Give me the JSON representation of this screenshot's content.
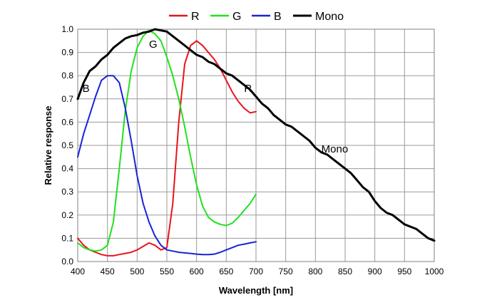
{
  "chart_data": {
    "type": "line",
    "title": "",
    "xlabel": "Wavelength [nm]",
    "ylabel": "Relative response",
    "xlim": [
      400,
      1000
    ],
    "ylim": [
      0.0,
      1.0
    ],
    "xticks": [
      400,
      450,
      500,
      550,
      600,
      650,
      700,
      750,
      800,
      850,
      900,
      950,
      1000
    ],
    "xtick_labels": [
      "400",
      "450",
      "500",
      "550",
      "600",
      "650",
      "700",
      "750",
      "800",
      "850",
      "900",
      "950",
      "1000"
    ],
    "yticks": [
      0.0,
      0.1,
      0.2,
      0.3,
      0.4,
      0.5,
      0.6,
      0.7,
      0.8,
      0.9,
      1.0
    ],
    "ytick_labels": [
      "0.0",
      "0.1",
      "0.2",
      "0.3",
      "0.4",
      "0.5",
      "0.6",
      "0.7",
      "0.8",
      "0.9",
      "1.0"
    ],
    "grid": true,
    "legend_position": "top",
    "series": [
      {
        "name": "R",
        "color": "#e8141c",
        "x": [
          400,
          410,
          420,
          430,
          440,
          450,
          460,
          470,
          480,
          490,
          500,
          510,
          520,
          530,
          540,
          550,
          560,
          570,
          580,
          590,
          600,
          610,
          620,
          630,
          640,
          650,
          660,
          670,
          680,
          690,
          700
        ],
        "y": [
          0.1,
          0.07,
          0.05,
          0.04,
          0.03,
          0.025,
          0.025,
          0.03,
          0.035,
          0.04,
          0.05,
          0.065,
          0.08,
          0.07,
          0.05,
          0.06,
          0.25,
          0.6,
          0.85,
          0.93,
          0.95,
          0.93,
          0.9,
          0.87,
          0.83,
          0.78,
          0.73,
          0.69,
          0.66,
          0.64,
          0.645
        ]
      },
      {
        "name": "G",
        "color": "#22e01e",
        "x": [
          400,
          410,
          420,
          430,
          440,
          450,
          460,
          470,
          480,
          490,
          500,
          510,
          520,
          530,
          540,
          550,
          560,
          570,
          580,
          590,
          600,
          610,
          620,
          630,
          640,
          650,
          660,
          670,
          680,
          690,
          700
        ],
        "y": [
          0.08,
          0.06,
          0.05,
          0.045,
          0.05,
          0.07,
          0.17,
          0.4,
          0.65,
          0.82,
          0.92,
          0.97,
          0.995,
          0.98,
          0.95,
          0.88,
          0.8,
          0.7,
          0.58,
          0.45,
          0.33,
          0.24,
          0.19,
          0.17,
          0.16,
          0.155,
          0.165,
          0.19,
          0.22,
          0.25,
          0.29
        ]
      },
      {
        "name": "B",
        "color": "#1a22d6",
        "x": [
          400,
          410,
          420,
          430,
          440,
          450,
          460,
          470,
          480,
          490,
          500,
          510,
          520,
          530,
          540,
          550,
          560,
          570,
          580,
          590,
          600,
          610,
          620,
          630,
          640,
          650,
          660,
          670,
          680,
          690,
          700
        ],
        "y": [
          0.45,
          0.55,
          0.63,
          0.71,
          0.78,
          0.8,
          0.8,
          0.77,
          0.66,
          0.52,
          0.37,
          0.25,
          0.17,
          0.11,
          0.07,
          0.05,
          0.045,
          0.04,
          0.037,
          0.035,
          0.032,
          0.03,
          0.03,
          0.032,
          0.04,
          0.05,
          0.06,
          0.07,
          0.075,
          0.08,
          0.085
        ]
      },
      {
        "name": "Mono",
        "color": "#000000",
        "x": [
          400,
          410,
          420,
          430,
          440,
          450,
          460,
          470,
          480,
          490,
          500,
          510,
          520,
          530,
          540,
          550,
          560,
          570,
          580,
          590,
          600,
          610,
          620,
          630,
          640,
          650,
          660,
          670,
          680,
          690,
          700,
          710,
          720,
          730,
          740,
          750,
          760,
          770,
          780,
          790,
          800,
          810,
          820,
          830,
          840,
          850,
          860,
          870,
          880,
          890,
          900,
          910,
          920,
          930,
          940,
          950,
          960,
          970,
          980,
          990,
          1000
        ],
        "y": [
          0.7,
          0.77,
          0.82,
          0.84,
          0.87,
          0.89,
          0.92,
          0.94,
          0.96,
          0.97,
          0.975,
          0.985,
          0.99,
          1.0,
          0.995,
          0.99,
          0.97,
          0.95,
          0.93,
          0.91,
          0.89,
          0.88,
          0.86,
          0.85,
          0.83,
          0.81,
          0.8,
          0.78,
          0.76,
          0.74,
          0.71,
          0.68,
          0.66,
          0.63,
          0.61,
          0.59,
          0.58,
          0.56,
          0.54,
          0.52,
          0.49,
          0.47,
          0.46,
          0.44,
          0.42,
          0.4,
          0.38,
          0.35,
          0.32,
          0.3,
          0.26,
          0.23,
          0.21,
          0.2,
          0.18,
          0.16,
          0.15,
          0.14,
          0.12,
          0.1,
          0.09
        ]
      }
    ],
    "annotations": [
      {
        "text": "B",
        "x": 408,
        "y": 0.73
      },
      {
        "text": "G",
        "x": 520,
        "y": 0.92
      },
      {
        "text": "R",
        "x": 680,
        "y": 0.73
      },
      {
        "text": "Mono",
        "x": 810,
        "y": 0.47
      }
    ]
  }
}
